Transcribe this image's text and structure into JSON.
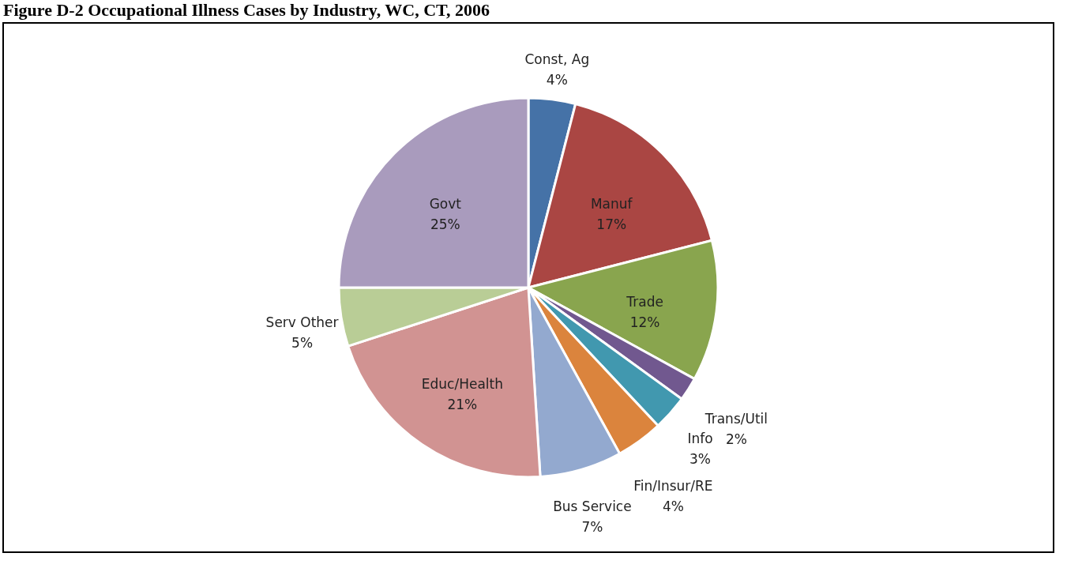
{
  "chart_data": {
    "type": "pie",
    "title": "Figure D-2 Occupational Illness Cases by Industry, WC, CT, 2006",
    "categories": [
      "Const, Ag",
      "Manuf",
      "Trade",
      "Trans/Util",
      "Info",
      "Fin/Insur/RE",
      "Bus Service",
      "Educ/Health",
      "Serv Other",
      "Govt"
    ],
    "values": [
      4,
      17,
      12,
      2,
      3,
      4,
      7,
      21,
      5,
      25
    ],
    "colors": [
      "#4572a7",
      "#aa4643",
      "#89a54e",
      "#71588f",
      "#4198af",
      "#db843d",
      "#93a9cf",
      "#d19392",
      "#b9cd96",
      "#a99bbd"
    ],
    "value_labels": [
      "4%",
      "17%",
      "12%",
      "2%",
      "3%",
      "4%",
      "7%",
      "21%",
      "5%",
      "25%"
    ]
  }
}
